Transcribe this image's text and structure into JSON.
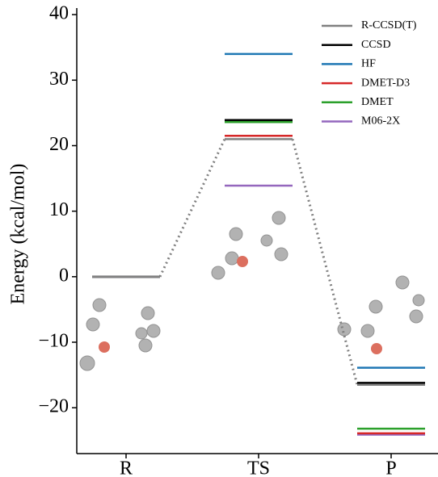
{
  "chart_data": {
    "type": "energy-levels",
    "y_label": "Energy (kcal/mol)",
    "categories": [
      "R",
      "TS",
      "P"
    ],
    "ylim": [
      -27,
      41
    ],
    "yticks": [
      {
        "value": -20,
        "label": "−20"
      },
      {
        "value": -10,
        "label": "−10"
      },
      0,
      10,
      20,
      30,
      40
    ],
    "connector_series": 0,
    "series": [
      {
        "name": "R-CCSD(T)",
        "color": "#808080",
        "values": [
          0,
          21.0,
          -16.5
        ]
      },
      {
        "name": "CCSD",
        "color": "#000000",
        "values": [
          0,
          23.9,
          -16.2
        ]
      },
      {
        "name": "HF",
        "color": "#1f77b4",
        "values": [
          0,
          34.0,
          -13.9
        ]
      },
      {
        "name": "DMET-D3",
        "color": "#d62728",
        "values": [
          0,
          21.5,
          -23.9
        ]
      },
      {
        "name": "DMET",
        "color": "#2ca02c",
        "values": [
          0,
          23.6,
          -23.2
        ]
      },
      {
        "name": "M06-2X",
        "color": "#9467bd",
        "values": [
          0,
          13.9,
          -24.1
        ]
      }
    ]
  }
}
